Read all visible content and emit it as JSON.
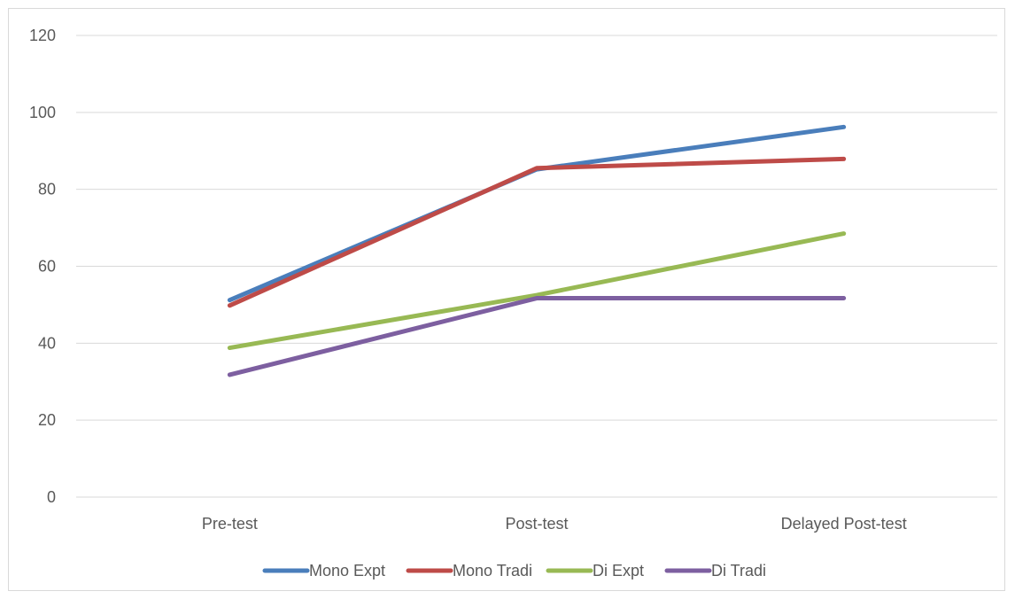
{
  "chart_data": {
    "type": "line",
    "title": "",
    "xlabel": "",
    "ylabel": "",
    "categories": [
      "Pre-test",
      "Post-test",
      "Delayed Post-test"
    ],
    "ylim": [
      0,
      120
    ],
    "yticks": [
      0,
      20,
      40,
      60,
      80,
      100,
      120
    ],
    "grid": true,
    "legend_position": "bottom",
    "series": [
      {
        "name": "Mono Expt",
        "values": [
          51.2,
          85.2,
          96.2
        ],
        "color": "#4a7ebb"
      },
      {
        "name": "Mono Tradi",
        "values": [
          49.8,
          85.5,
          87.9
        ],
        "color": "#be4b48"
      },
      {
        "name": "Di Expt",
        "values": [
          38.8,
          52.5,
          68.5
        ],
        "color": "#98b954"
      },
      {
        "name": "Di Tradi",
        "values": [
          31.8,
          51.7,
          51.7
        ],
        "color": "#7d5fa0"
      }
    ]
  }
}
